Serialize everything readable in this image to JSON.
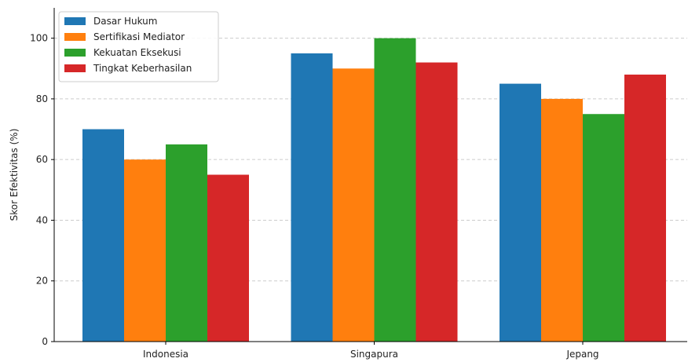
{
  "chart_data": {
    "type": "bar",
    "title": "",
    "xlabel": "",
    "ylabel": "Skor Efektivitas (%)",
    "categories": [
      "Indonesia",
      "Singapura",
      "Jepang"
    ],
    "series": [
      {
        "name": "Dasar Hukum",
        "color": "#1f77b4",
        "values": [
          70,
          95,
          85
        ]
      },
      {
        "name": "Sertifikasi Mediator",
        "color": "#ff7f0e",
        "values": [
          60,
          90,
          80
        ]
      },
      {
        "name": "Kekuatan Eksekusi",
        "color": "#2ca02c",
        "values": [
          65,
          100,
          75
        ]
      },
      {
        "name": "Tingkat Keberhasilan",
        "color": "#d62728",
        "values": [
          55,
          92,
          88
        ]
      }
    ],
    "ylim": [
      0,
      110
    ],
    "yticks": [
      0,
      20,
      40,
      60,
      80,
      100
    ],
    "grid": "horizontal-dashed",
    "legend_position": "top-left"
  }
}
